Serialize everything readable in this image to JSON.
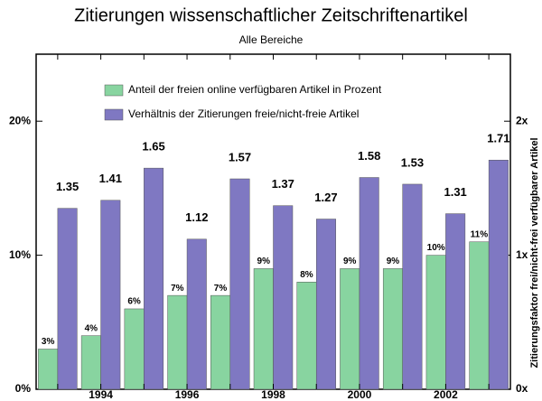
{
  "chart_data": {
    "type": "bar",
    "title": "Zitierungen wissenschaftlicher Zeitschriftenartikel",
    "subtitle": "Alle Bereiche",
    "y2label": "Zitierungsfaktor frei/nicht-frei verfügbarer Artikel",
    "categories": [
      null,
      "1994",
      null,
      "1996",
      null,
      "1998",
      null,
      "2000",
      null,
      "2002",
      null
    ],
    "series": [
      {
        "name": "Anteil der freien online verfügbaren Artikel in Prozent",
        "color": "#88d4a0",
        "values": [
          3,
          4,
          6,
          7,
          7,
          9,
          8,
          9,
          9,
          10,
          11
        ],
        "value_labels": [
          "3%",
          "4%",
          "6%",
          "7%",
          "7%",
          "9%",
          "8%",
          "9%",
          "9%",
          "10%",
          "11%"
        ]
      },
      {
        "name": "Verhältnis der Zitierungen freie/nicht-freie Artikel",
        "color": "#7f78c2",
        "axis": "y2",
        "values": [
          1.35,
          1.41,
          1.65,
          1.12,
          1.57,
          1.37,
          1.27,
          1.58,
          1.53,
          1.31,
          1.71
        ]
      }
    ],
    "ylim": [
      0,
      25
    ],
    "yticks": [
      {
        "value": 0,
        "label": "0%"
      },
      {
        "value": 10,
        "label": "10%"
      },
      {
        "value": 20,
        "label": "20%"
      }
    ],
    "y2lim": [
      0,
      2.5
    ],
    "y2ticks": [
      {
        "value": 0,
        "label": "0x"
      },
      {
        "value": 1,
        "label": "1x"
      },
      {
        "value": 2,
        "label": "2x"
      }
    ],
    "legend": "upper left"
  }
}
